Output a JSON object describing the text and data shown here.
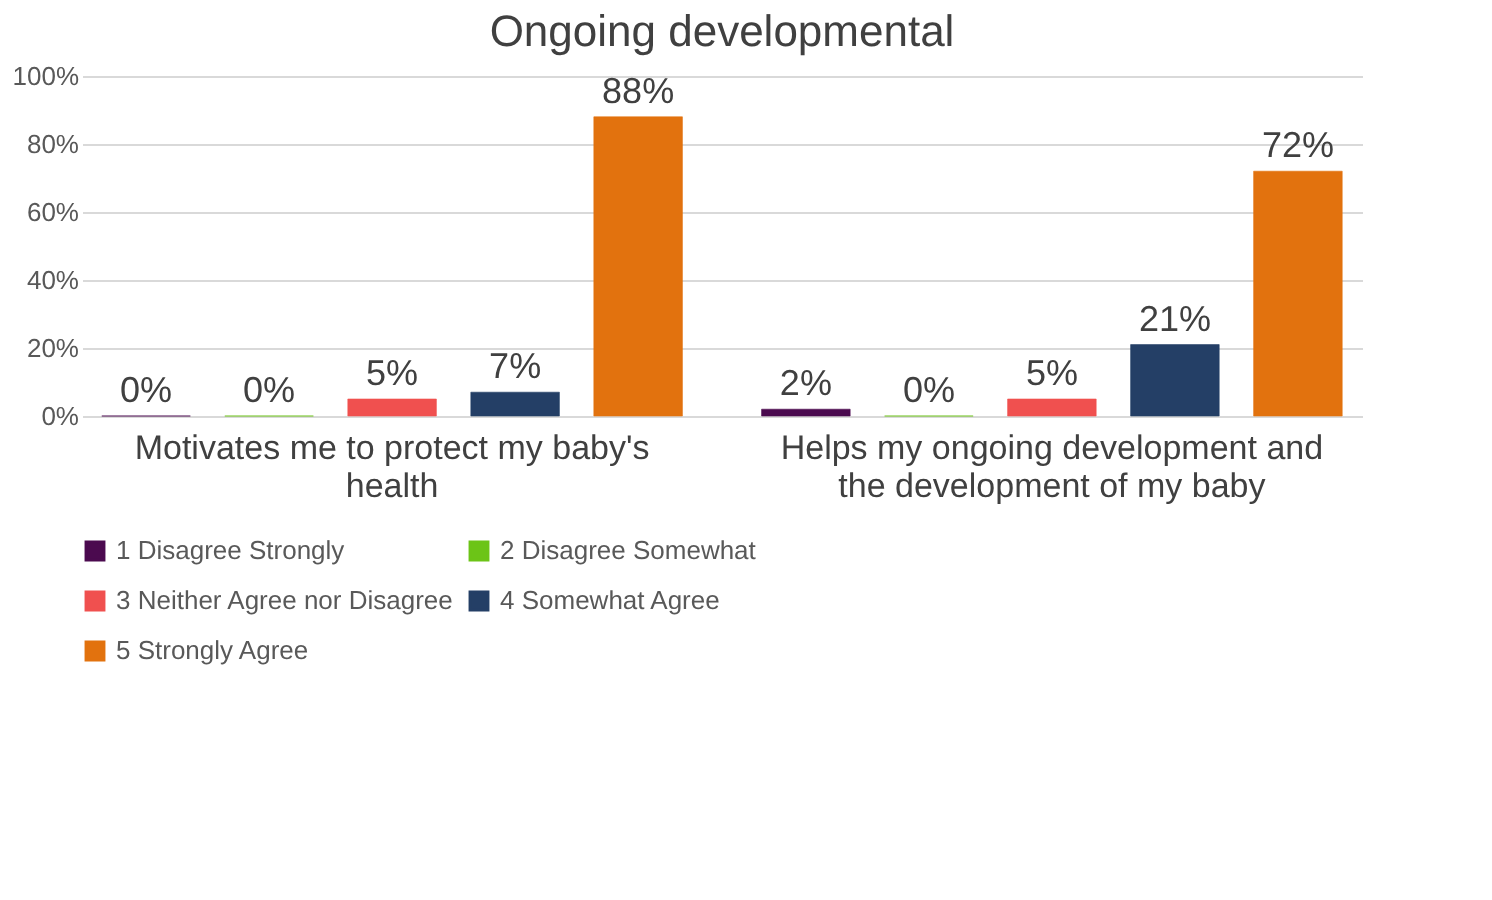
{
  "chart_data": {
    "type": "bar",
    "title": "Ongoing developmental",
    "categories": [
      "Motivates me to protect my baby's health",
      "Helps my ongoing development and the development of my baby"
    ],
    "series": [
      {
        "name": "1 Disagree Strongly",
        "color": "#4b0a4f",
        "values": [
          0,
          2
        ],
        "value_labels": [
          "0%",
          "2%"
        ]
      },
      {
        "name": "2 Disagree Somewhat",
        "color": "#6cc417",
        "values": [
          0,
          0
        ],
        "value_labels": [
          "0%",
          "0%"
        ]
      },
      {
        "name": "3 Neither Agree nor Disagree",
        "color": "#f0504f",
        "values": [
          5,
          5
        ],
        "value_labels": [
          "5%",
          "5%"
        ]
      },
      {
        "name": "4 Somewhat Agree",
        "color": "#243f66",
        "values": [
          7,
          21
        ],
        "value_labels": [
          "7%",
          "21%"
        ]
      },
      {
        "name": "5 Strongly Agree",
        "color": "#e2720e",
        "values": [
          88,
          72
        ],
        "value_labels": [
          "88%",
          "72%"
        ]
      }
    ],
    "ylim": [
      0,
      100
    ],
    "yticks": [
      {
        "value": 0,
        "label": "0%"
      },
      {
        "value": 20,
        "label": "20%"
      },
      {
        "value": 40,
        "label": "40%"
      },
      {
        "value": 60,
        "label": "60%"
      },
      {
        "value": 80,
        "label": "80%"
      },
      {
        "value": 100,
        "label": "100%"
      }
    ],
    "grid": "y",
    "legend": "bottom"
  }
}
